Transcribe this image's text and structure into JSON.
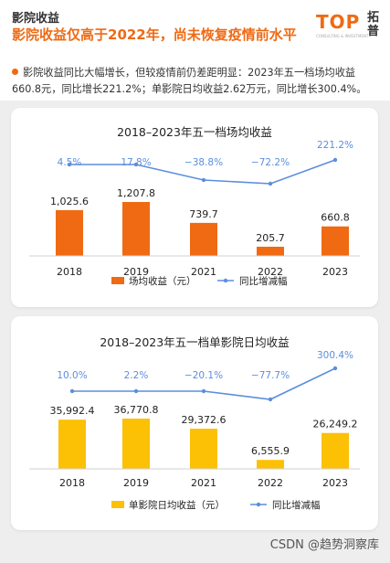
{
  "header": {
    "section_label": "影院收益",
    "headline": "影院收益仅高于2022年，尚未恢复疫情前水平",
    "logo_word": "TOP",
    "logo_sub": "CONSULTING & INVESTMENT",
    "logo_cn": "拓普"
  },
  "summary": {
    "text": "影院收益同比大幅增长，但较疫情前仍差距明显：2023年五一档场均收益660.8元，同比增长221.2%；单影院日均收益2.62万元，同比增长300.4%。"
  },
  "colors": {
    "orange": "#ef6a13",
    "yellow": "#fcc005",
    "line_blue": "#5b8ede",
    "panel_gray": "#eeeeee"
  },
  "chart_data": [
    {
      "type": "bar",
      "title": "2018–2023年五一档场均收益",
      "categories": [
        "2018",
        "2019",
        "2021",
        "2022",
        "2023"
      ],
      "series": [
        {
          "name": "场均收益（元）",
          "type": "bar",
          "values": [
            1025.6,
            1207.8,
            739.7,
            205.7,
            660.8
          ],
          "labels": [
            "1,025.6",
            "1,207.8",
            "739.7",
            "205.7",
            "660.8"
          ]
        },
        {
          "name": "同比增减幅",
          "type": "line",
          "values": [
            4.5,
            17.8,
            -38.8,
            -72.2,
            221.2
          ],
          "labels": [
            "4.5%",
            "17.8%",
            "−38.8%",
            "−72.2%",
            "221.2%"
          ]
        }
      ]
    },
    {
      "type": "bar",
      "title": "2018–2023年五一档单影院日均收益",
      "categories": [
        "2018",
        "2019",
        "2021",
        "2022",
        "2023"
      ],
      "series": [
        {
          "name": "单影院日均收益（元）",
          "type": "bar",
          "values": [
            35992.4,
            36770.8,
            29372.6,
            6555.9,
            26249.2
          ],
          "labels": [
            "35,992.4",
            "36,770.8",
            "29,372.6",
            "6,555.9",
            "26,249.2"
          ]
        },
        {
          "name": "同比增减幅",
          "type": "line",
          "values": [
            10.0,
            2.2,
            -20.1,
            -77.7,
            300.4
          ],
          "labels": [
            "10.0%",
            "2.2%",
            "−20.1%",
            "−77.7%",
            "300.4%"
          ]
        }
      ]
    }
  ],
  "footer": {
    "credit": "CSDN @趋势洞察库"
  }
}
